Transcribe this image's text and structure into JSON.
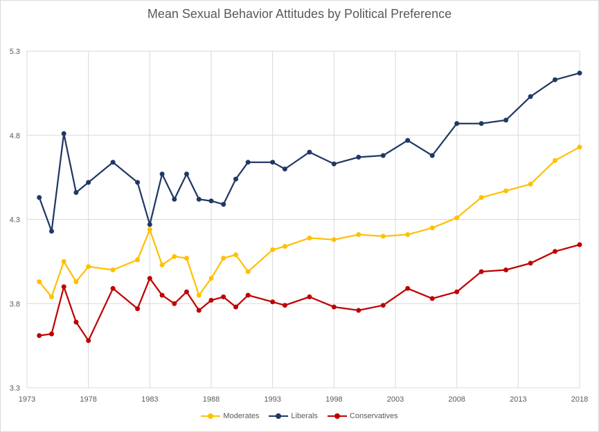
{
  "chart_data": {
    "type": "line",
    "title": "Mean Sexual Behavior Attitudes by Political Preference",
    "xlabel": "",
    "ylabel": "",
    "xlim": [
      1973,
      2018
    ],
    "ylim": [
      3.3,
      5.3
    ],
    "x_ticks": [
      "1973",
      "1978",
      "1983",
      "1988",
      "1993",
      "1998",
      "2003",
      "2008",
      "2013",
      "2018"
    ],
    "y_ticks": [
      "3.3",
      "3.8",
      "4.3",
      "4.8",
      "5.3"
    ],
    "grid": true,
    "legend_position": "bottom",
    "series": [
      {
        "name": "Moderates",
        "color": "#FFC000",
        "points": [
          [
            1974,
            3.93
          ],
          [
            1975,
            3.84
          ],
          [
            1976,
            4.05
          ],
          [
            1977,
            3.93
          ],
          [
            1978,
            4.02
          ],
          [
            1980,
            4.0
          ],
          [
            1982,
            4.06
          ],
          [
            1983,
            4.24
          ],
          [
            1984,
            4.03
          ],
          [
            1985,
            4.08
          ],
          [
            1986,
            4.07
          ],
          [
            1987,
            3.85
          ],
          [
            1988,
            3.95
          ],
          [
            1989,
            4.07
          ],
          [
            1990,
            4.09
          ],
          [
            1991,
            3.99
          ],
          [
            1993,
            4.12
          ],
          [
            1994,
            4.14
          ],
          [
            1996,
            4.19
          ],
          [
            1998,
            4.18
          ],
          [
            2000,
            4.21
          ],
          [
            2002,
            4.2
          ],
          [
            2004,
            4.21
          ],
          [
            2006,
            4.25
          ],
          [
            2008,
            4.31
          ],
          [
            2010,
            4.43
          ],
          [
            2012,
            4.47
          ],
          [
            2014,
            4.51
          ],
          [
            2016,
            4.65
          ],
          [
            2018,
            4.73
          ]
        ]
      },
      {
        "name": "Liberals",
        "color": "#203864",
        "points": [
          [
            1974,
            4.43
          ],
          [
            1975,
            4.23
          ],
          [
            1976,
            4.81
          ],
          [
            1977,
            4.46
          ],
          [
            1978,
            4.52
          ],
          [
            1980,
            4.64
          ],
          [
            1982,
            4.52
          ],
          [
            1983,
            4.27
          ],
          [
            1984,
            4.57
          ],
          [
            1985,
            4.42
          ],
          [
            1986,
            4.57
          ],
          [
            1987,
            4.42
          ],
          [
            1988,
            4.41
          ],
          [
            1989,
            4.39
          ],
          [
            1990,
            4.54
          ],
          [
            1991,
            4.64
          ],
          [
            1993,
            4.64
          ],
          [
            1994,
            4.6
          ],
          [
            1996,
            4.7
          ],
          [
            1998,
            4.63
          ],
          [
            2000,
            4.67
          ],
          [
            2002,
            4.68
          ],
          [
            2004,
            4.77
          ],
          [
            2006,
            4.68
          ],
          [
            2008,
            4.87
          ],
          [
            2010,
            4.87
          ],
          [
            2012,
            4.89
          ],
          [
            2014,
            5.03
          ],
          [
            2016,
            5.13
          ],
          [
            2018,
            5.17
          ]
        ]
      },
      {
        "name": "Conservatives",
        "color": "#C00000",
        "points": [
          [
            1974,
            3.61
          ],
          [
            1975,
            3.62
          ],
          [
            1976,
            3.9
          ],
          [
            1977,
            3.69
          ],
          [
            1978,
            3.58
          ],
          [
            1980,
            3.89
          ],
          [
            1982,
            3.77
          ],
          [
            1983,
            3.95
          ],
          [
            1984,
            3.85
          ],
          [
            1985,
            3.8
          ],
          [
            1986,
            3.87
          ],
          [
            1987,
            3.76
          ],
          [
            1988,
            3.82
          ],
          [
            1989,
            3.84
          ],
          [
            1990,
            3.78
          ],
          [
            1991,
            3.85
          ],
          [
            1993,
            3.81
          ],
          [
            1994,
            3.79
          ],
          [
            1996,
            3.84
          ],
          [
            1998,
            3.78
          ],
          [
            2000,
            3.76
          ],
          [
            2002,
            3.79
          ],
          [
            2004,
            3.89
          ],
          [
            2006,
            3.83
          ],
          [
            2008,
            3.87
          ],
          [
            2010,
            3.99
          ],
          [
            2012,
            4.0
          ],
          [
            2014,
            4.04
          ],
          [
            2016,
            4.11
          ],
          [
            2018,
            4.15
          ]
        ]
      }
    ],
    "legend_order": [
      "Moderates",
      "Liberals",
      "Conservatives"
    ]
  },
  "colors": {
    "grid": "#d9d9d9",
    "axis_text": "#595959"
  }
}
